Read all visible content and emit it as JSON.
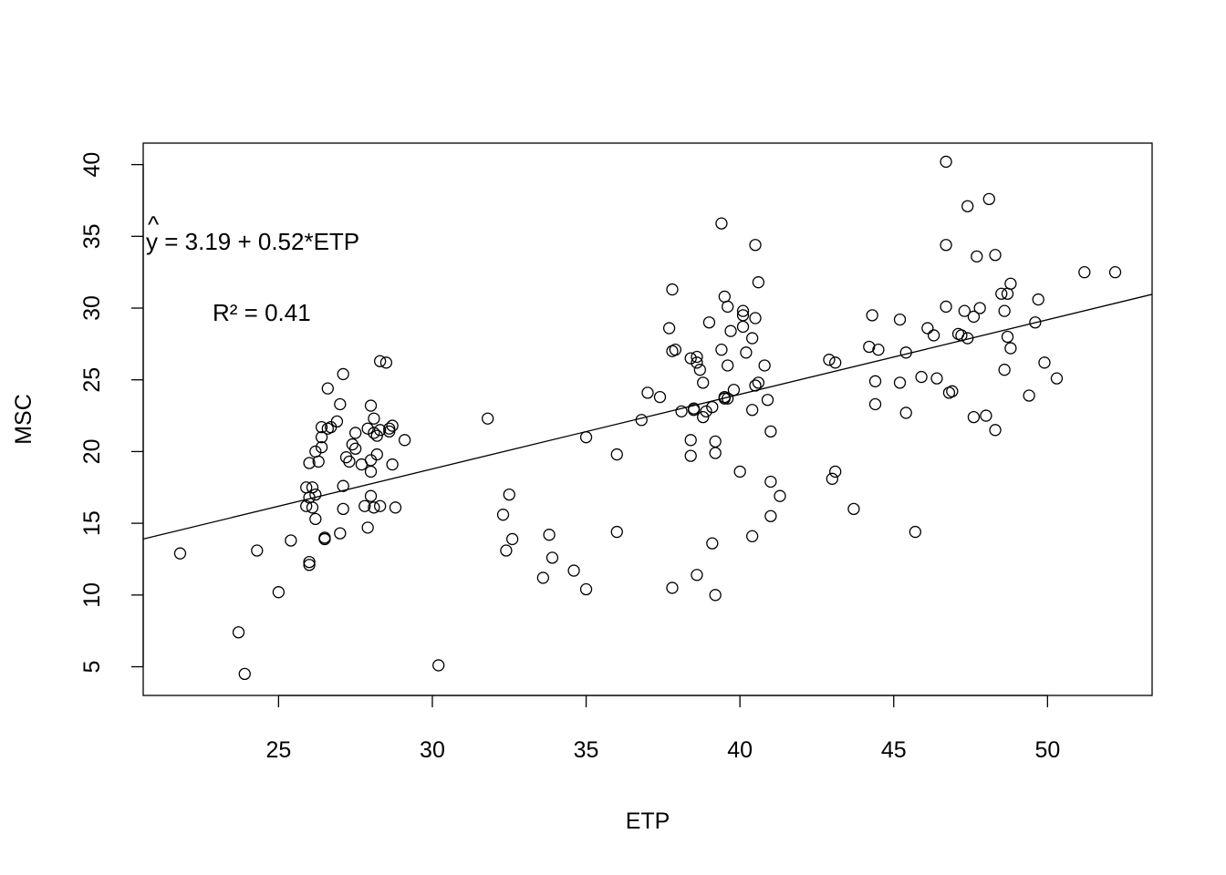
{
  "chart_data": {
    "type": "scatter",
    "title": "",
    "xlabel": "ETP",
    "ylabel": "MSC",
    "xlim": [
      20.6,
      53.4
    ],
    "ylim": [
      3.0,
      41.5
    ],
    "grid": false,
    "legend": null,
    "x_ticks": [
      25,
      30,
      35,
      40,
      45,
      50
    ],
    "y_ticks": [
      5,
      10,
      15,
      20,
      25,
      30,
      35,
      40
    ],
    "x_tick_labels": [
      "25",
      "30",
      "35",
      "40",
      "45",
      "50"
    ],
    "y_tick_labels": [
      "5",
      "10",
      "15",
      "20",
      "25",
      "30",
      "35",
      "40"
    ],
    "regression": {
      "intercept": 3.19,
      "slope": 0.52,
      "equation_label": "y = 3.19 + 0.52*ETP",
      "equation_hat": "^",
      "r2_label": "R² =  0.41"
    },
    "points": [
      [
        21.8,
        12.9
      ],
      [
        23.7,
        7.4
      ],
      [
        23.9,
        4.5
      ],
      [
        24.3,
        13.1
      ],
      [
        25.0,
        10.2
      ],
      [
        25.4,
        13.8
      ],
      [
        25.9,
        16.2
      ],
      [
        25.9,
        17.5
      ],
      [
        26.0,
        12.3
      ],
      [
        26.0,
        12.1
      ],
      [
        26.1,
        17.5
      ],
      [
        26.1,
        16.1
      ],
      [
        26.0,
        19.2
      ],
      [
        26.0,
        16.8
      ],
      [
        26.2,
        17.0
      ],
      [
        26.2,
        15.3
      ],
      [
        26.2,
        20.0
      ],
      [
        26.3,
        19.3
      ],
      [
        26.4,
        21.7
      ],
      [
        26.4,
        20.3
      ],
      [
        26.4,
        21.0
      ],
      [
        26.5,
        14.0
      ],
      [
        26.5,
        13.9
      ],
      [
        26.5,
        13.9
      ],
      [
        26.6,
        24.4
      ],
      [
        26.6,
        21.6
      ],
      [
        26.7,
        21.7
      ],
      [
        26.9,
        22.1
      ],
      [
        27.0,
        23.3
      ],
      [
        27.0,
        14.3
      ],
      [
        27.1,
        17.6
      ],
      [
        27.1,
        16.0
      ],
      [
        27.1,
        25.4
      ],
      [
        27.2,
        19.6
      ],
      [
        27.3,
        19.3
      ],
      [
        27.4,
        20.5
      ],
      [
        27.5,
        20.2
      ],
      [
        27.5,
        21.3
      ],
      [
        27.7,
        19.1
      ],
      [
        27.8,
        16.2
      ],
      [
        27.9,
        21.6
      ],
      [
        27.9,
        14.7
      ],
      [
        28.0,
        23.2
      ],
      [
        28.0,
        18.6
      ],
      [
        28.0,
        19.4
      ],
      [
        28.0,
        16.9
      ],
      [
        28.1,
        16.1
      ],
      [
        28.1,
        21.3
      ],
      [
        28.1,
        22.3
      ],
      [
        28.2,
        21.1
      ],
      [
        28.2,
        19.8
      ],
      [
        28.3,
        16.2
      ],
      [
        28.3,
        21.5
      ],
      [
        28.3,
        26.3
      ],
      [
        28.5,
        26.2
      ],
      [
        28.6,
        21.6
      ],
      [
        28.6,
        21.4
      ],
      [
        28.7,
        21.8
      ],
      [
        28.7,
        19.1
      ],
      [
        28.8,
        16.1
      ],
      [
        29.1,
        20.8
      ],
      [
        30.2,
        5.1
      ],
      [
        31.8,
        22.3
      ],
      [
        32.3,
        15.6
      ],
      [
        32.4,
        13.1
      ],
      [
        32.5,
        17.0
      ],
      [
        32.6,
        13.9
      ],
      [
        33.6,
        11.2
      ],
      [
        33.8,
        14.2
      ],
      [
        33.9,
        12.6
      ],
      [
        34.6,
        11.7
      ],
      [
        35.0,
        10.4
      ],
      [
        35.0,
        21.0
      ],
      [
        36.0,
        19.8
      ],
      [
        36.0,
        14.4
      ],
      [
        36.8,
        22.2
      ],
      [
        37.0,
        24.1
      ],
      [
        37.4,
        23.8
      ],
      [
        37.7,
        28.6
      ],
      [
        37.8,
        31.3
      ],
      [
        37.8,
        10.5
      ],
      [
        37.8,
        27.0
      ],
      [
        37.9,
        27.1
      ],
      [
        38.1,
        22.8
      ],
      [
        38.4,
        20.8
      ],
      [
        38.4,
        26.5
      ],
      [
        38.4,
        19.7
      ],
      [
        38.5,
        22.9
      ],
      [
        38.5,
        23.0
      ],
      [
        38.6,
        11.4
      ],
      [
        38.6,
        26.2
      ],
      [
        38.6,
        26.6
      ],
      [
        38.7,
        25.7
      ],
      [
        38.8,
        24.8
      ],
      [
        38.8,
        22.4
      ],
      [
        38.9,
        22.8
      ],
      [
        39.0,
        29.0
      ],
      [
        39.1,
        13.6
      ],
      [
        39.1,
        23.1
      ],
      [
        39.2,
        20.7
      ],
      [
        39.2,
        19.9
      ],
      [
        39.2,
        10.0
      ],
      [
        39.4,
        35.9
      ],
      [
        39.4,
        27.1
      ],
      [
        39.5,
        23.8
      ],
      [
        39.5,
        30.8
      ],
      [
        39.5,
        23.7
      ],
      [
        39.6,
        30.1
      ],
      [
        39.6,
        26.0
      ],
      [
        39.6,
        23.7
      ],
      [
        39.7,
        28.4
      ],
      [
        39.8,
        24.3
      ],
      [
        40.0,
        18.6
      ],
      [
        40.1,
        29.5
      ],
      [
        40.1,
        28.7
      ],
      [
        40.1,
        29.8
      ],
      [
        40.2,
        26.9
      ],
      [
        40.4,
        27.9
      ],
      [
        40.4,
        22.9
      ],
      [
        40.5,
        34.4
      ],
      [
        40.5,
        29.3
      ],
      [
        40.4,
        14.1
      ],
      [
        40.5,
        24.6
      ],
      [
        40.6,
        31.8
      ],
      [
        40.6,
        24.8
      ],
      [
        40.8,
        26.0
      ],
      [
        40.9,
        23.6
      ],
      [
        41.0,
        21.4
      ],
      [
        41.0,
        15.5
      ],
      [
        41.0,
        17.9
      ],
      [
        41.3,
        16.9
      ],
      [
        42.9,
        26.4
      ],
      [
        43.0,
        18.1
      ],
      [
        43.1,
        18.6
      ],
      [
        43.1,
        26.2
      ],
      [
        43.7,
        16.0
      ],
      [
        44.2,
        27.3
      ],
      [
        44.3,
        29.5
      ],
      [
        44.4,
        24.9
      ],
      [
        44.4,
        23.3
      ],
      [
        44.5,
        27.1
      ],
      [
        45.2,
        24.8
      ],
      [
        45.2,
        29.2
      ],
      [
        45.4,
        26.9
      ],
      [
        45.4,
        22.7
      ],
      [
        45.7,
        14.4
      ],
      [
        45.9,
        25.2
      ],
      [
        46.1,
        28.6
      ],
      [
        46.3,
        28.1
      ],
      [
        46.4,
        25.1
      ],
      [
        46.7,
        34.4
      ],
      [
        46.7,
        40.2
      ],
      [
        46.7,
        30.1
      ],
      [
        46.8,
        24.1
      ],
      [
        46.9,
        24.2
      ],
      [
        47.1,
        28.2
      ],
      [
        47.2,
        28.1
      ],
      [
        47.3,
        29.8
      ],
      [
        47.4,
        37.1
      ],
      [
        47.4,
        27.9
      ],
      [
        47.6,
        29.4
      ],
      [
        47.6,
        22.4
      ],
      [
        47.7,
        33.6
      ],
      [
        47.8,
        30.0
      ],
      [
        48.0,
        22.5
      ],
      [
        48.1,
        37.6
      ],
      [
        48.3,
        33.7
      ],
      [
        48.3,
        21.5
      ],
      [
        48.5,
        31.0
      ],
      [
        48.6,
        29.8
      ],
      [
        48.6,
        25.7
      ],
      [
        48.7,
        31.0
      ],
      [
        48.7,
        28.0
      ],
      [
        48.8,
        27.2
      ],
      [
        48.8,
        31.7
      ],
      [
        49.4,
        23.9
      ],
      [
        49.6,
        29.0
      ],
      [
        49.7,
        30.6
      ],
      [
        49.9,
        26.2
      ],
      [
        50.3,
        25.1
      ],
      [
        51.2,
        32.5
      ],
      [
        52.2,
        32.5
      ]
    ]
  }
}
